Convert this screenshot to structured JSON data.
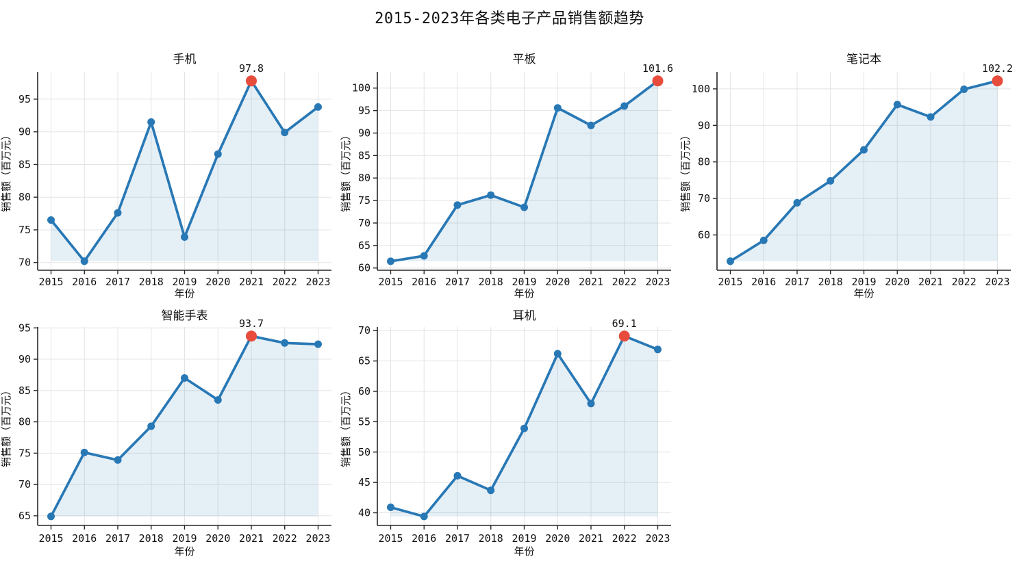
{
  "figure": {
    "title": "2015-2023年各类电子产品销售额趋势"
  },
  "colors": {
    "line": "#2878b5",
    "fill": "rgba(40,120,181,0.12)",
    "highlight": "#e74c3c",
    "grid": "#e4e4e4",
    "spine": "#262626",
    "text": "#111111",
    "background": "#ffffff"
  },
  "chart_data": [
    {
      "type": "line",
      "title": "手机",
      "xlabel": "年份",
      "ylabel": "销售额（百万元）",
      "categories": [
        "2015",
        "2016",
        "2017",
        "2018",
        "2019",
        "2020",
        "2021",
        "2022",
        "2023"
      ],
      "values": [
        76.5,
        70.2,
        77.6,
        91.5,
        73.9,
        86.6,
        97.8,
        89.9,
        93.8
      ],
      "yticks": [
        70,
        75,
        80,
        85,
        90,
        95
      ],
      "ylim": [
        68.82,
        99.18
      ],
      "max_annotation": {
        "label": "97.8",
        "index": 6,
        "year": "2021"
      },
      "grid": true,
      "area_fill": true,
      "marker": "circle",
      "legend": null
    },
    {
      "type": "line",
      "title": "平板",
      "xlabel": "年份",
      "ylabel": "销售额（百万元）",
      "categories": [
        "2015",
        "2016",
        "2017",
        "2018",
        "2019",
        "2020",
        "2021",
        "2022",
        "2023"
      ],
      "values": [
        61.5,
        62.7,
        74.0,
        76.2,
        73.5,
        95.6,
        91.7,
        96.0,
        101.6
      ],
      "yticks": [
        60,
        65,
        70,
        75,
        80,
        85,
        90,
        95,
        100
      ],
      "ylim": [
        59.5,
        103.61
      ],
      "max_annotation": {
        "label": "101.6",
        "index": 8,
        "year": "2023"
      },
      "grid": true,
      "area_fill": true,
      "marker": "circle",
      "legend": null
    },
    {
      "type": "line",
      "title": "笔记本",
      "xlabel": "年份",
      "ylabel": "销售额（百万元）",
      "categories": [
        "2015",
        "2016",
        "2017",
        "2018",
        "2019",
        "2020",
        "2021",
        "2022",
        "2023"
      ],
      "values": [
        52.8,
        58.5,
        68.8,
        74.8,
        83.3,
        95.7,
        92.3,
        99.9,
        102.2
      ],
      "yticks": [
        60,
        70,
        80,
        90,
        100
      ],
      "ylim": [
        50.33,
        104.67
      ],
      "max_annotation": {
        "label": "102.2",
        "index": 8,
        "year": "2023"
      },
      "grid": true,
      "area_fill": true,
      "marker": "circle",
      "legend": null
    },
    {
      "type": "line",
      "title": "智能手表",
      "xlabel": "年份",
      "ylabel": "销售额（百万元）",
      "categories": [
        "2015",
        "2016",
        "2017",
        "2018",
        "2019",
        "2020",
        "2021",
        "2022",
        "2023"
      ],
      "values": [
        64.9,
        75.1,
        73.9,
        79.3,
        87.0,
        83.5,
        93.7,
        92.6,
        92.4
      ],
      "yticks": [
        65,
        70,
        75,
        80,
        85,
        90,
        95
      ],
      "ylim": [
        63.46,
        95.14
      ],
      "max_annotation": {
        "label": "93.7",
        "index": 6,
        "year": "2021"
      },
      "grid": true,
      "area_fill": true,
      "marker": "circle",
      "legend": null
    },
    {
      "type": "line",
      "title": "耳机",
      "xlabel": "年份",
      "ylabel": "销售额（百万元）",
      "categories": [
        "2015",
        "2016",
        "2017",
        "2018",
        "2019",
        "2020",
        "2021",
        "2022",
        "2023"
      ],
      "values": [
        40.9,
        39.4,
        46.1,
        43.7,
        53.9,
        66.2,
        58.0,
        69.1,
        66.9
      ],
      "yticks": [
        40,
        45,
        50,
        55,
        60,
        65,
        70
      ],
      "ylim": [
        37.92,
        70.59
      ],
      "max_annotation": {
        "label": "69.1",
        "index": 7,
        "year": "2022"
      },
      "grid": true,
      "area_fill": true,
      "marker": "circle",
      "legend": null
    }
  ]
}
